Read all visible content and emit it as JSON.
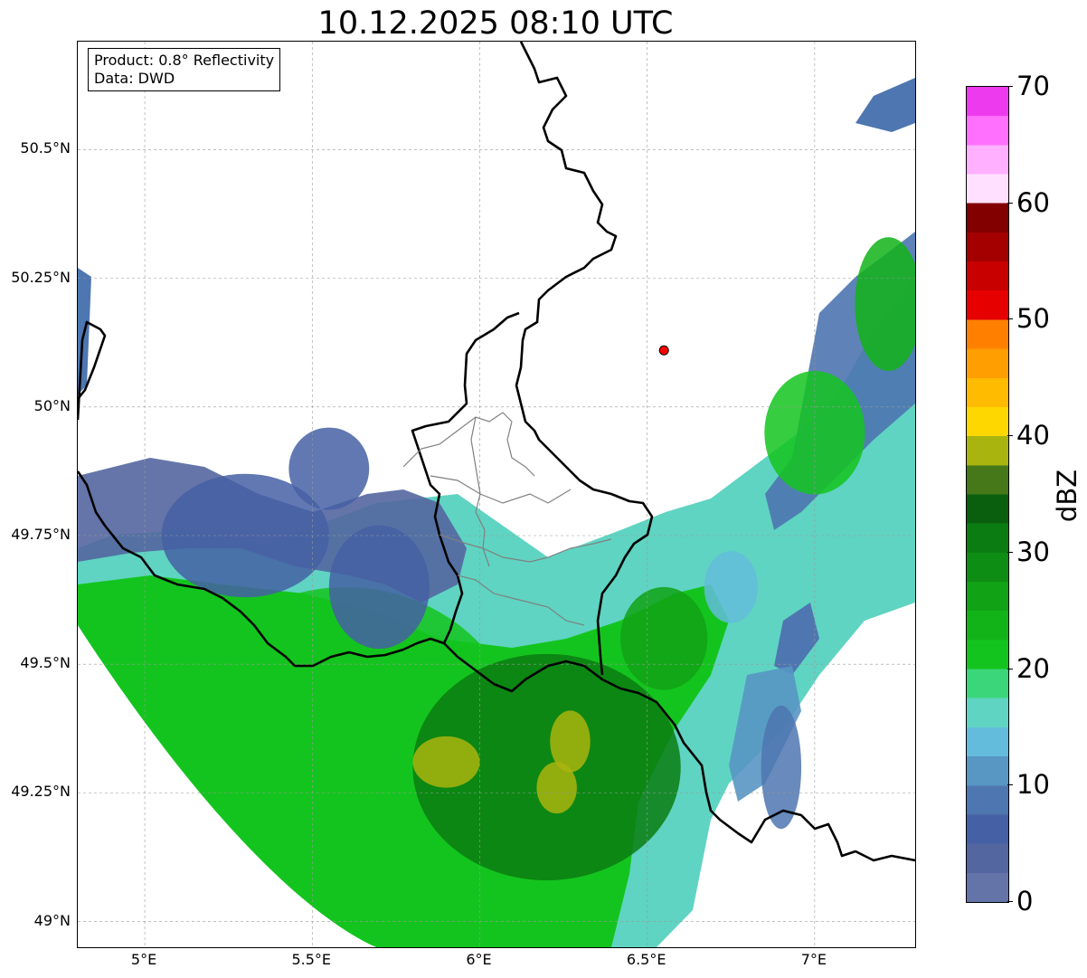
{
  "title": "10.12.2025 08:10 UTC",
  "info_box": {
    "line1": "Product: 0.8° Reflectivity",
    "line2": "Data: DWD"
  },
  "lat_labels": [
    {
      "value": 50.5,
      "text": "50.5°N"
    },
    {
      "value": 50.25,
      "text": "50.25°N"
    },
    {
      "value": 50.0,
      "text": "50°N"
    },
    {
      "value": 49.75,
      "text": "49.75°N"
    },
    {
      "value": 49.5,
      "text": "49.5°N"
    },
    {
      "value": 49.25,
      "text": "49.25°N"
    },
    {
      "value": 49.0,
      "text": "49°N"
    }
  ],
  "lon_labels": [
    {
      "value": 5.0,
      "text": "5°E"
    },
    {
      "value": 5.5,
      "text": "5.5°E"
    },
    {
      "value": 6.0,
      "text": "6°E"
    },
    {
      "value": 6.5,
      "text": "6.5°E"
    },
    {
      "value": 7.0,
      "text": "7°E"
    }
  ],
  "extent": {
    "lon_min": 4.8,
    "lon_max": 7.3,
    "lat_min": 48.95,
    "lat_max": 50.71
  },
  "radar_site": {
    "lon": 6.55,
    "lat": 50.11,
    "color": "#ff0000"
  },
  "colorbar": {
    "label": "dBZ",
    "min": 0,
    "max": 70,
    "ticks": [
      {
        "value": 0,
        "text": "0"
      },
      {
        "value": 10,
        "text": "10"
      },
      {
        "value": 20,
        "text": "20"
      },
      {
        "value": 30,
        "text": "30"
      },
      {
        "value": 40,
        "text": "40"
      },
      {
        "value": 50,
        "text": "50"
      },
      {
        "value": 60,
        "text": "60"
      },
      {
        "value": 70,
        "text": "70"
      }
    ],
    "colors": [
      "#6473a8",
      "#5466a0",
      "#4560a5",
      "#4e76b0",
      "#5896c4",
      "#63bcdb",
      "#5fd4c2",
      "#3bd67a",
      "#14c41e",
      "#12b318",
      "#11a215",
      "#0e8d14",
      "#0b7c12",
      "#0a5f0e",
      "#46781a",
      "#aab40e",
      "#ffd700",
      "#ffbb00",
      "#ff9e00",
      "#ff8000",
      "#e60000",
      "#c80000",
      "#a50000",
      "#820000",
      "#ffe0ff",
      "#ffb0ff",
      "#ff70ff",
      "#ee3aee"
    ]
  },
  "precip_cells": [
    {
      "lon": 5.6,
      "lat": 49.3,
      "rx": 0.55,
      "ry": 0.35,
      "dbz": 22
    },
    {
      "lon": 6.2,
      "lat": 49.3,
      "rx": 0.4,
      "ry": 0.22,
      "dbz": 30
    },
    {
      "lon": 5.9,
      "lat": 49.31,
      "rx": 0.1,
      "ry": 0.05,
      "dbz": 38
    },
    {
      "lon": 6.27,
      "lat": 49.35,
      "rx": 0.06,
      "ry": 0.06,
      "dbz": 39
    },
    {
      "lon": 6.23,
      "lat": 49.26,
      "rx": 0.06,
      "ry": 0.05,
      "dbz": 39
    },
    {
      "lon": 6.55,
      "lat": 49.55,
      "rx": 0.13,
      "ry": 0.1,
      "dbz": 26
    },
    {
      "lon": 5.3,
      "lat": 49.75,
      "rx": 0.25,
      "ry": 0.12,
      "dbz": 6
    },
    {
      "lon": 5.7,
      "lat": 49.65,
      "rx": 0.15,
      "ry": 0.12,
      "dbz": 5
    },
    {
      "lon": 7.0,
      "lat": 49.95,
      "rx": 0.15,
      "ry": 0.12,
      "dbz": 22
    },
    {
      "lon": 7.22,
      "lat": 50.2,
      "rx": 0.1,
      "ry": 0.13,
      "dbz": 24
    },
    {
      "lon": 5.55,
      "lat": 49.88,
      "rx": 0.12,
      "ry": 0.08,
      "dbz": 6
    },
    {
      "lon": 6.9,
      "lat": 49.3,
      "rx": 0.06,
      "ry": 0.12,
      "dbz": 8
    },
    {
      "lon": 6.75,
      "lat": 49.65,
      "rx": 0.08,
      "ry": 0.07,
      "dbz": 14
    }
  ]
}
